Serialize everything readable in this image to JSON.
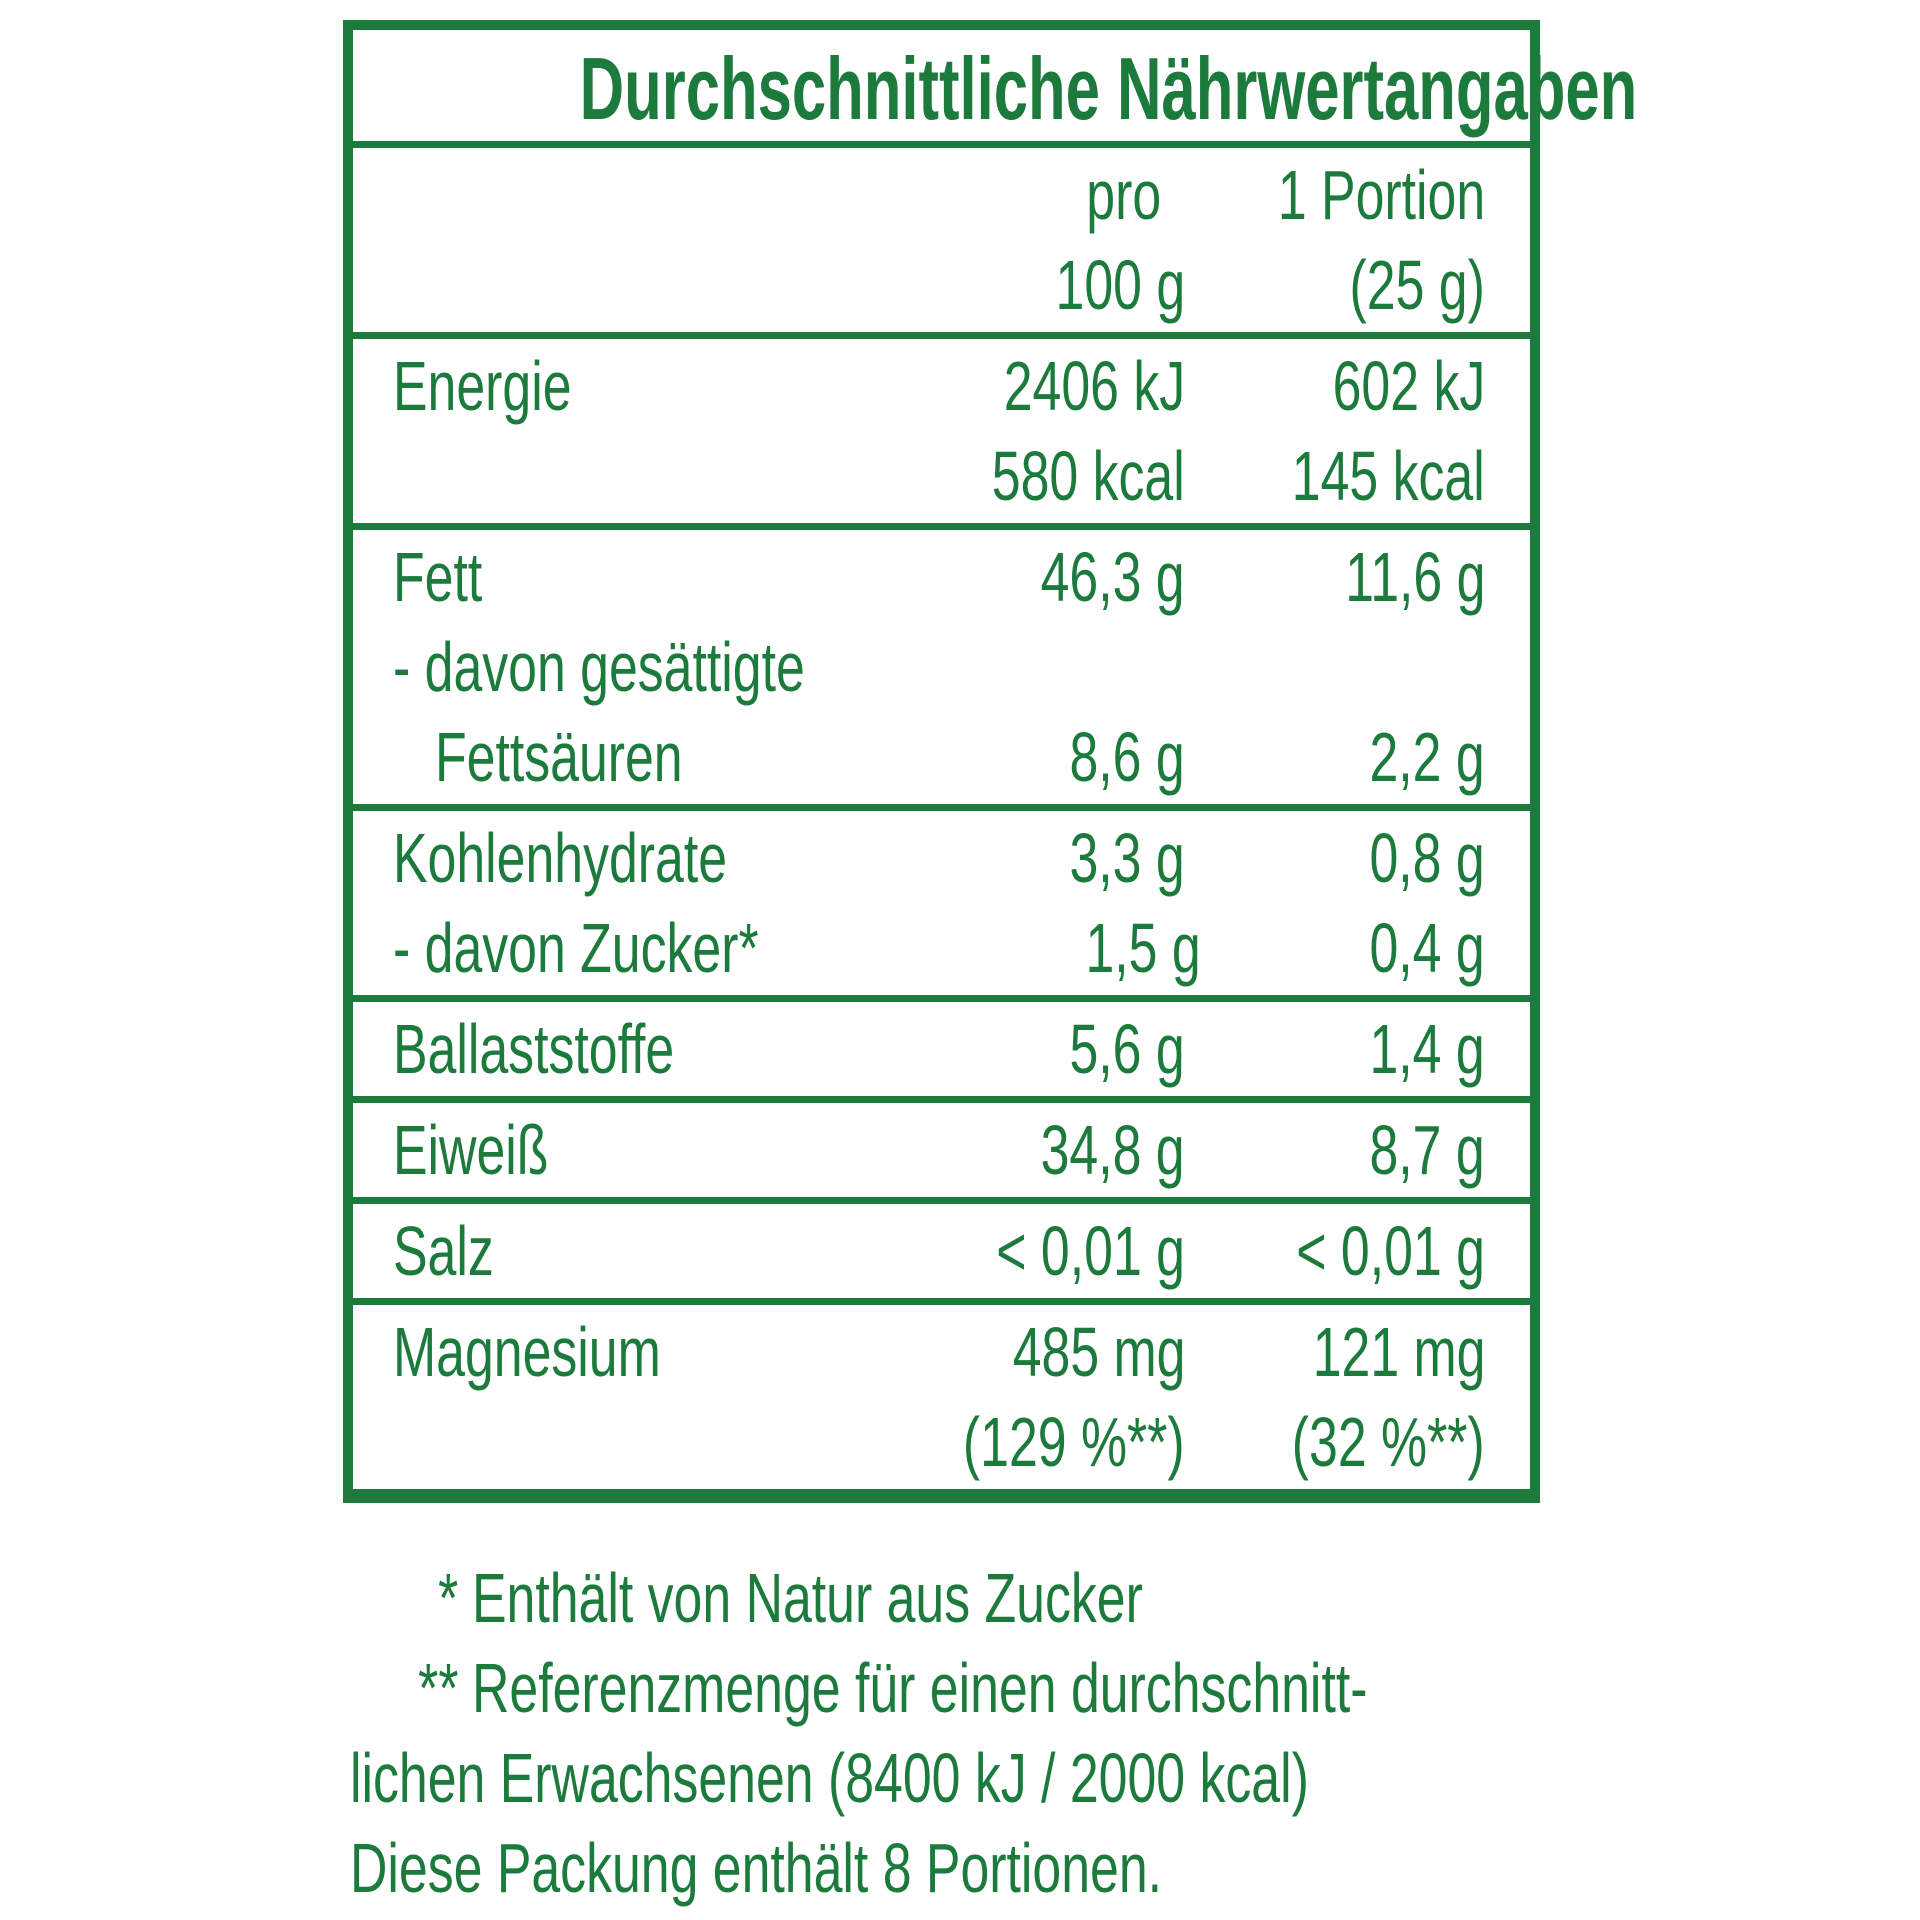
{
  "colors": {
    "green": "#1c7a3d",
    "background": "#ffffff"
  },
  "table": {
    "title": "Durchschnittliche Nährwertangaben",
    "header": {
      "col_100g": [
        "pro",
        "100 g"
      ],
      "col_portion": [
        "1 Portion",
        "(25 g)"
      ]
    },
    "rows": [
      {
        "name": "energie",
        "lines": [
          {
            "label": "Energie",
            "per_100g": "2406 kJ",
            "per_portion": "602 kJ"
          },
          {
            "label": "",
            "per_100g": "580 kcal",
            "per_portion": "145 kcal"
          }
        ]
      },
      {
        "name": "fett",
        "lines": [
          {
            "label": "Fett",
            "per_100g": "46,3 g",
            "per_portion": "11,6 g"
          },
          {
            "label": "- davon gesättigte",
            "per_100g": "",
            "per_portion": ""
          },
          {
            "label": "Fettsäuren",
            "per_100g": "8,6 g",
            "per_portion": "2,2 g"
          }
        ]
      },
      {
        "name": "kohlenhydrate",
        "lines": [
          {
            "label": "Kohlenhydrate",
            "per_100g": "3,3 g",
            "per_portion": "0,8 g"
          },
          {
            "label": "- davon Zucker*",
            "per_100g": "1,5 g",
            "per_portion": "0,4 g"
          }
        ]
      },
      {
        "name": "ballaststoffe",
        "lines": [
          {
            "label": "Ballaststoffe",
            "per_100g": "5,6 g",
            "per_portion": "1,4 g"
          }
        ]
      },
      {
        "name": "eiweiss",
        "lines": [
          {
            "label": "Eiweiß",
            "per_100g": "34,8 g",
            "per_portion": "8,7 g"
          }
        ]
      },
      {
        "name": "salz",
        "lines": [
          {
            "label": "Salz",
            "per_100g": "< 0,01 g",
            "per_portion": "< 0,01 g"
          }
        ]
      },
      {
        "name": "magnesium",
        "lines": [
          {
            "label": "Magnesium",
            "per_100g": "485 mg",
            "per_portion": "121 mg"
          },
          {
            "label": "",
            "per_100g": "(129 %**)",
            "per_portion": "(32 %**)"
          }
        ]
      }
    ]
  },
  "footnotes": [
    {
      "marker": "*",
      "text": "Enthält von Natur aus Zucker"
    },
    {
      "marker": "**",
      "text": "Referenzmenge für einen durchschnitt-"
    },
    {
      "marker": "",
      "text": "lichen Erwachsenen (8400 kJ / 2000 kcal)"
    },
    {
      "marker": "",
      "text": "Diese Packung enthält 8 Portionen."
    }
  ]
}
